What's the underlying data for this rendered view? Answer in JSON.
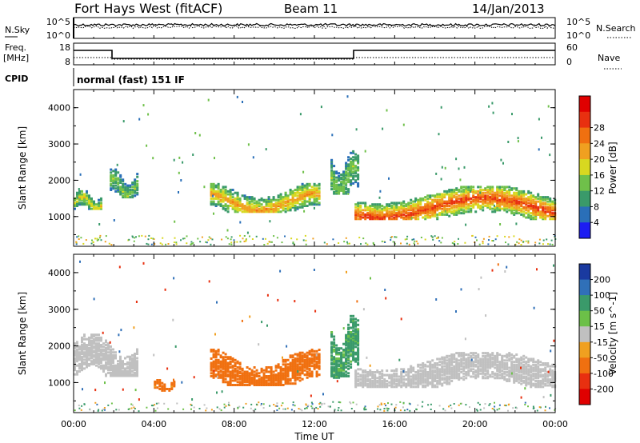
{
  "header": {
    "title": "Fort Hays West (fitACF)",
    "beam": "Beam 11",
    "date": "14/Jan/2013"
  },
  "top_panels": {
    "nsky_label": "N.Sky",
    "nsky_ticks": [
      "10^5",
      "10^0"
    ],
    "nsearch_label": "N.Search",
    "nsearch_ticks": [
      "10^5",
      "10^0"
    ],
    "freq_label_1": "Freq.",
    "freq_label_2": "[MHz]",
    "freq_ticks": [
      "18",
      "8"
    ],
    "nave_label": "Nave",
    "nave_ticks": [
      "60",
      "0"
    ],
    "cpid_label": "CPID",
    "cpid_text": "normal (fast) 151 IF"
  },
  "chart_data": [
    {
      "type": "heatmap",
      "name": "power-panel",
      "ylabel": "Slant Range [km]",
      "ylim": [
        180,
        4500
      ],
      "yticks": [
        "1000",
        "2000",
        "3000",
        "4000"
      ],
      "xlim_hours": [
        0,
        24
      ],
      "colorbar_label": "Power [dB]",
      "colorbar_ticks": [
        "4",
        "8",
        "12",
        "16",
        "20",
        "24",
        "28"
      ],
      "colorbar_colors": [
        "#1d1df2",
        "#2a6fb8",
        "#3a9a6a",
        "#6fc04a",
        "#d8d820",
        "#f0a020",
        "#f07010",
        "#e83010",
        "#e00000"
      ],
      "features": [
        {
          "x": [
            0.0,
            1.4
          ],
          "y": [
            1180,
            1700
          ],
          "power": 16
        },
        {
          "x": [
            1.8,
            3.2
          ],
          "y": [
            1500,
            2300
          ],
          "power": 12
        },
        {
          "x": [
            6.8,
            12.2
          ],
          "y": [
            1100,
            1900
          ],
          "power": 20
        },
        {
          "x": [
            12.8,
            14.2
          ],
          "y": [
            1600,
            2800
          ],
          "power": 12
        },
        {
          "x": [
            14.0,
            24.0
          ],
          "y": [
            900,
            1800
          ],
          "power": 26
        }
      ]
    },
    {
      "type": "heatmap",
      "name": "velocity-panel",
      "ylabel": "Slant Range [km]",
      "ylim": [
        180,
        4500
      ],
      "yticks": [
        "1000",
        "2000",
        "3000",
        "4000"
      ],
      "xlim_hours": [
        0,
        24
      ],
      "xticks": [
        "00:00",
        "04:00",
        "08:00",
        "12:00",
        "16:00",
        "20:00",
        "00:00"
      ],
      "xlabel": "Time UT",
      "colorbar_label": "Velocity [m s^-1]",
      "colorbar_ticks": [
        "200",
        "100",
        "50",
        "15",
        "-15",
        "-50",
        "-100",
        "-200"
      ],
      "colorbar_colors": [
        "#1a3aa0",
        "#3070b8",
        "#3a9a6a",
        "#6cc048",
        "#c0c0c0",
        "#f0a020",
        "#f07010",
        "#e83010",
        "#e00000"
      ],
      "features": [
        {
          "x": [
            0.0,
            3.2
          ],
          "y": [
            1150,
            2300
          ],
          "velocity": 0
        },
        {
          "x": [
            4.0,
            5.0
          ],
          "y": [
            750,
            1050
          ],
          "velocity": -50
        },
        {
          "x": [
            6.8,
            12.2
          ],
          "y": [
            900,
            1900
          ],
          "velocity": -60
        },
        {
          "x": [
            12.8,
            14.2
          ],
          "y": [
            1100,
            2800
          ],
          "velocity": 40
        },
        {
          "x": [
            14.0,
            24.0
          ],
          "y": [
            850,
            1800
          ],
          "velocity": 0
        }
      ]
    }
  ]
}
